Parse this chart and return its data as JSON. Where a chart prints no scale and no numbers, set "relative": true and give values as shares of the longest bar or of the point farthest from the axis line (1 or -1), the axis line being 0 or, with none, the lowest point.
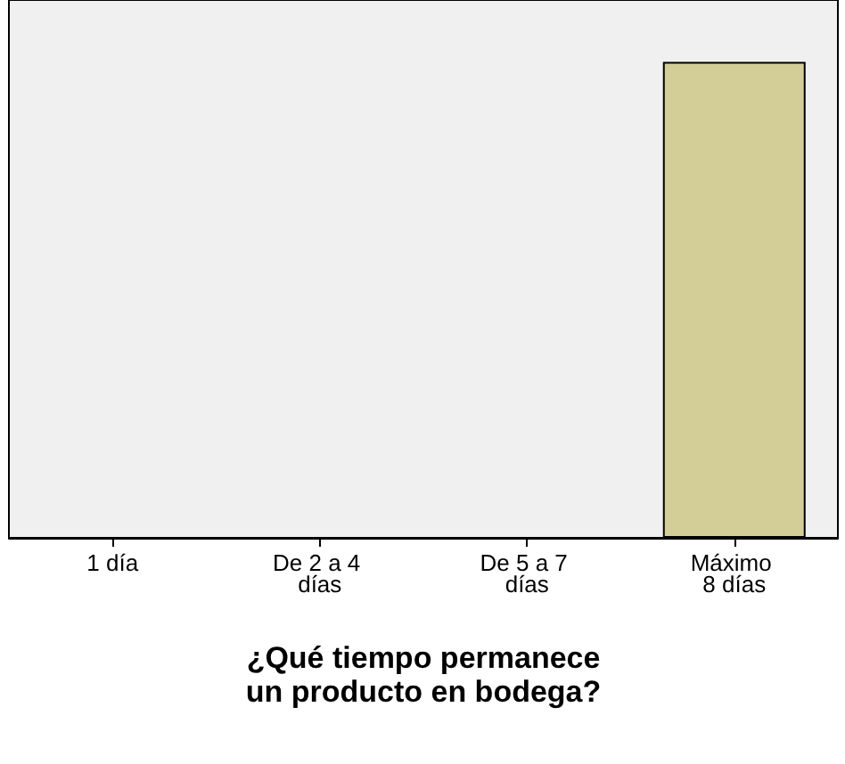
{
  "chart_data": {
    "type": "bar",
    "xlabel": "¿Qué tiempo permanece un producto en bodega?",
    "categories": [
      "1 día",
      "De 2 a 4 días",
      "De 5 a 7 días",
      "Máximo 8 días"
    ],
    "values": [
      0,
      0,
      0,
      1
    ],
    "color": "#d3ce97",
    "relative": true
  }
}
